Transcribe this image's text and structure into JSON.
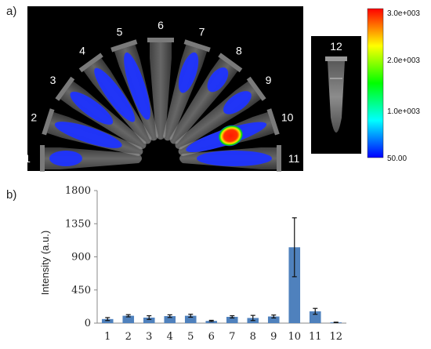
{
  "panels": {
    "a_label": "a)",
    "b_label": "b)"
  },
  "image_panel": {
    "tube_labels": [
      "1",
      "2",
      "3",
      "4",
      "5",
      "6",
      "7",
      "8",
      "9",
      "10",
      "11",
      "12"
    ],
    "colorbar": {
      "max_label": "3.0e+003",
      "tick_labels": [
        "2.0e+003",
        "1.0e+003"
      ],
      "min_label": "50.00",
      "colors": [
        "#ff0000",
        "#ffff00",
        "#00ff00",
        "#00ffff",
        "#0000ff"
      ]
    },
    "signal_colors": {
      "low": "#1e33ff",
      "high": "#ff1a00",
      "ring": "#ffe600"
    }
  },
  "chart_data": {
    "type": "bar",
    "categories": [
      "1",
      "2",
      "3",
      "4",
      "5",
      "6",
      "7",
      "8",
      "9",
      "10",
      "11",
      "12"
    ],
    "values": [
      55,
      100,
      75,
      95,
      100,
      30,
      85,
      70,
      90,
      1030,
      160,
      10
    ],
    "errors": [
      20,
      15,
      25,
      18,
      20,
      8,
      15,
      35,
      20,
      400,
      40,
      3
    ],
    "title": "",
    "xlabel": "",
    "ylabel": "Intensity (a.u.)",
    "ylim": [
      0,
      1800
    ],
    "yticks": [
      0,
      450,
      900,
      1350,
      1800
    ],
    "ytick_labels": [
      "0",
      "450",
      "900",
      "1350",
      "1800"
    ],
    "bar_color": "#4f81bd",
    "grid": false
  }
}
